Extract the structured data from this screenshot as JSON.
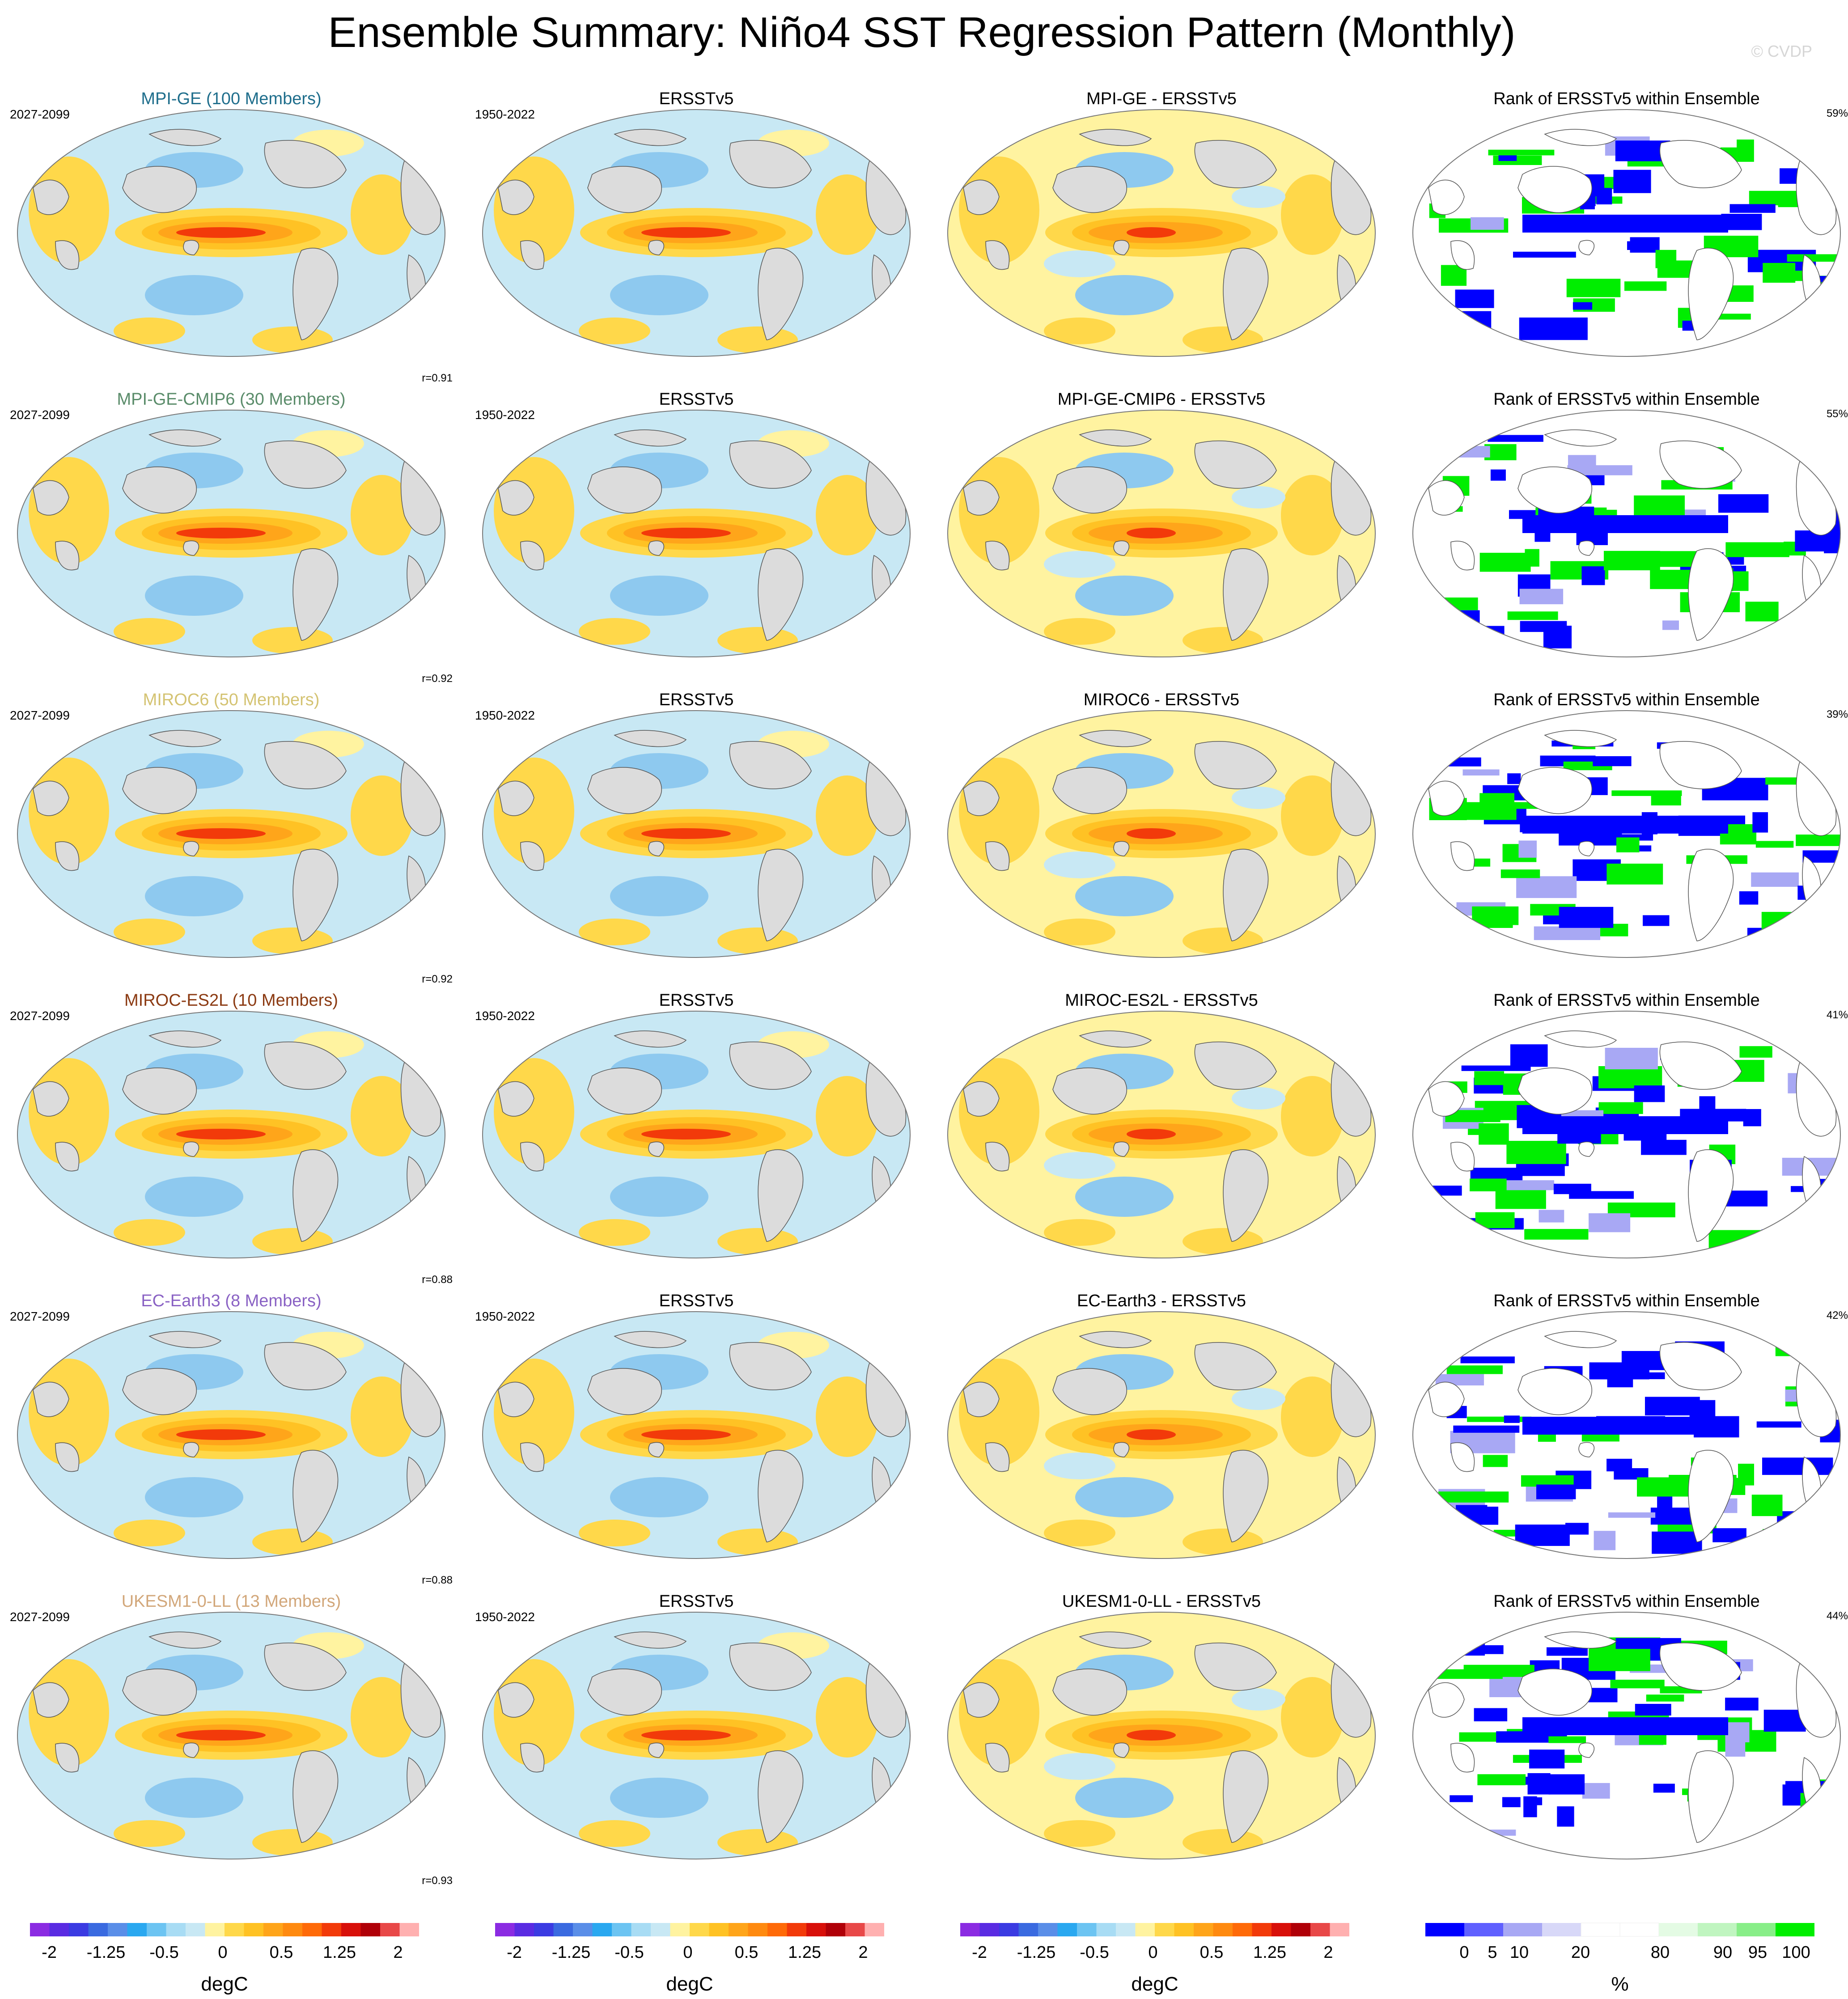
{
  "title": "Ensemble Summary: Niño4 SST Regression Pattern (Monthly)",
  "watermark": "© CVDP",
  "observation": {
    "name": "ERSSTv5",
    "period": "1950-2022"
  },
  "rank_title": "Rank of ERSSTv5 within Ensemble",
  "rows": [
    {
      "model": "MPI-GE (100 Members)",
      "model_color": "#1f6e8c",
      "period": "2027-2099",
      "pattern_corr": "r=0.91",
      "diff_title": "MPI-GE - ERSSTv5",
      "rank_pct": "59%"
    },
    {
      "model": "MPI-GE-CMIP6 (30 Members)",
      "model_color": "#5a8c6a",
      "period": "2027-2099",
      "pattern_corr": "r=0.92",
      "diff_title": "MPI-GE-CMIP6 - ERSSTv5",
      "rank_pct": "55%"
    },
    {
      "model": "MIROC6 (50 Members)",
      "model_color": "#d4c372",
      "period": "2027-2099",
      "pattern_corr": "r=0.92",
      "diff_title": "MIROC6 - ERSSTv5",
      "rank_pct": "39%"
    },
    {
      "model": "MIROC-ES2L (10 Members)",
      "model_color": "#8b3a12",
      "period": "2027-2099",
      "pattern_corr": "r=0.88",
      "diff_title": "MIROC-ES2L - ERSSTv5",
      "rank_pct": "41%"
    },
    {
      "model": "EC-Earth3 (8 Members)",
      "model_color": "#8a62c4",
      "period": "2027-2099",
      "pattern_corr": "r=0.88",
      "diff_title": "EC-Earth3 - ERSSTv5",
      "rank_pct": "42%"
    },
    {
      "model": "UKESM1-0-LL (13 Members)",
      "model_color": "#d2a77a",
      "period": "2027-2099",
      "pattern_corr": "r=0.93",
      "diff_title": "UKESM1-0-LL - ERSSTv5",
      "rank_pct": "44%"
    }
  ],
  "colorbars": {
    "regression": {
      "unit": "degC",
      "colors": [
        "#8b2be2",
        "#5a2be2",
        "#3b3be2",
        "#3a6ae0",
        "#5a8ee8",
        "#2aa8f0",
        "#6cc4f2",
        "#a8dcf4",
        "#c8e8f4",
        "#fff3a0",
        "#ffd84a",
        "#ffc224",
        "#ffa51a",
        "#ff8a10",
        "#ff6a08",
        "#f23a0a",
        "#d8100a",
        "#b00008",
        "#e84848",
        "#ffb0b0"
      ],
      "ticks": [
        "-2",
        "-1.25",
        "-0.5",
        "0",
        "0.5",
        "1.25",
        "2"
      ]
    },
    "rank": {
      "unit": "%",
      "colors": [
        "#0000ff",
        "#6060ff",
        "#a8a8f4",
        "#d8d8f8",
        "#ffffff",
        "#ffffff",
        "#e4fbe4",
        "#c0f5c0",
        "#88ee88",
        "#00ee00"
      ],
      "ticks": [
        "0",
        "5",
        "10",
        "20",
        "80",
        "90",
        "95",
        "100"
      ]
    }
  }
}
